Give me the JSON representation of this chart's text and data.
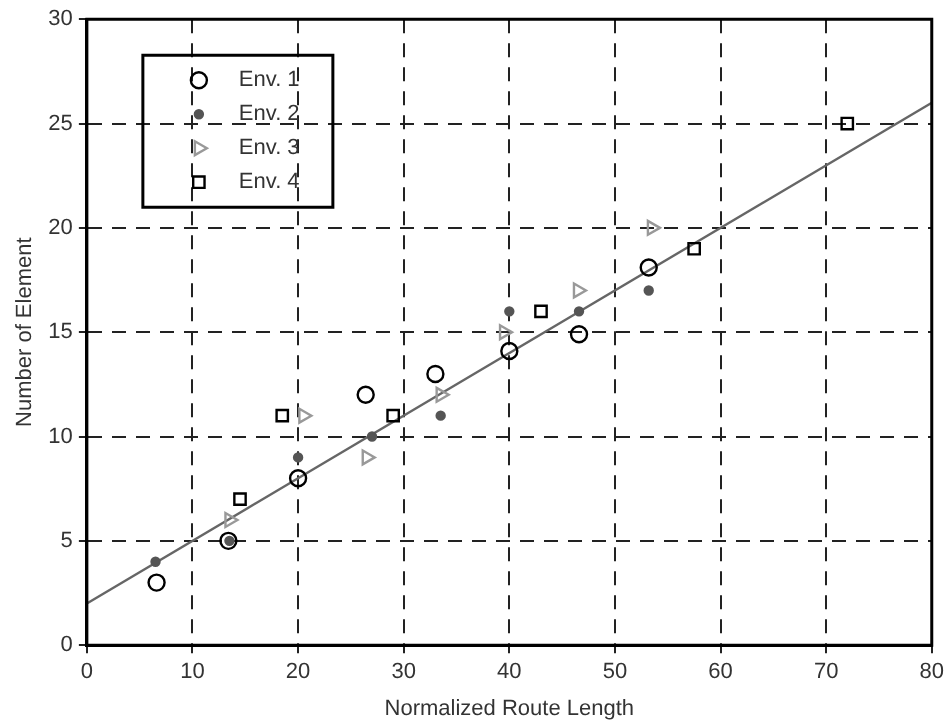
{
  "chart_data": {
    "type": "scatter",
    "xlabel": "Normalized Route Length",
    "ylabel": "Number of Element",
    "xlim": [
      0,
      80
    ],
    "ylim": [
      0,
      30
    ],
    "xticks": [
      0,
      10,
      20,
      30,
      40,
      50,
      60,
      70,
      80
    ],
    "yticks": [
      0,
      5,
      10,
      15,
      20,
      25,
      30
    ],
    "grid": true,
    "legend": "top left",
    "series": [
      {
        "name": "Env. 1",
        "color": "#000000",
        "marker": "circle",
        "x": [
          6.6,
          13.4,
          20,
          26.4,
          33,
          40,
          46.6,
          53.2
        ],
        "values": [
          3,
          5,
          8,
          12,
          13,
          14.1,
          14.9,
          18.1
        ]
      },
      {
        "name": "Env. 2",
        "color": "#555555",
        "marker": "circle",
        "x": [
          6.5,
          13.5,
          20,
          27,
          33.5,
          40,
          46.6,
          53.2
        ],
        "values": [
          4,
          5,
          9,
          10,
          11,
          16,
          16,
          17
        ]
      },
      {
        "name": "Env. 3",
        "color": "#999999",
        "marker": "triangle",
        "x": [
          13.5,
          20.5,
          26.5,
          33.5,
          39.5,
          46.5,
          53.5
        ],
        "values": [
          6,
          11,
          9,
          12,
          15,
          17,
          20
        ]
      },
      {
        "name": "Env. 4",
        "color": "#000000",
        "marker": "square",
        "x": [
          14.5,
          18.5,
          29,
          43,
          57.5,
          72
        ],
        "values": [
          7,
          11,
          11,
          16,
          19,
          25
        ]
      },
      {
        "type": "line",
        "color": "#666666",
        "line_style": "solid",
        "marker": "none",
        "x": [
          0,
          80
        ],
        "values": [
          2,
          26
        ]
      }
    ]
  }
}
